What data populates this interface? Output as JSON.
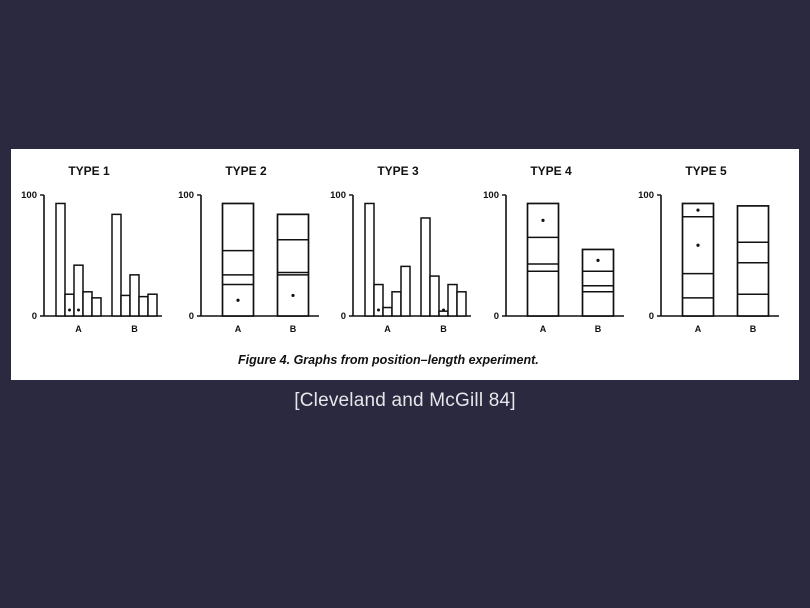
{
  "figure": {
    "caption": "Figure 4. Graphs from position–length experiment."
  },
  "citation": "[Cleveland and McGill 84]",
  "chart_data": [
    {
      "type": "bar",
      "title": "TYPE 1",
      "ylim": [
        0,
        100
      ],
      "yticks": [
        "0",
        "100"
      ],
      "categories": [
        "A",
        "B"
      ],
      "groups": [
        {
          "category": "A",
          "bars": [
            93,
            18,
            42,
            20,
            15
          ],
          "marked_bars": [
            1,
            2
          ]
        },
        {
          "category": "B",
          "bars": [
            84,
            17,
            34,
            16,
            18
          ],
          "marked_bars": []
        }
      ]
    },
    {
      "type": "bar",
      "title": "TYPE 2",
      "ylim": [
        0,
        100
      ],
      "yticks": [
        "0",
        "100"
      ],
      "categories": [
        "A",
        "B"
      ],
      "stacks": [
        {
          "category": "A",
          "boundaries": [
            26,
            34,
            54,
            93
          ],
          "marked_segment": 0
        },
        {
          "category": "B",
          "boundaries": [
            34,
            36,
            63,
            84
          ],
          "marked_segment": 0
        }
      ]
    },
    {
      "type": "bar",
      "title": "TYPE 3",
      "ylim": [
        0,
        100
      ],
      "yticks": [
        "0",
        "100"
      ],
      "categories": [
        "A",
        "B"
      ],
      "groups": [
        {
          "category": "A",
          "bars": [
            93,
            26,
            7,
            20,
            41
          ],
          "marked_bars": [
            1
          ]
        },
        {
          "category": "B",
          "bars": [
            81,
            33,
            4,
            26,
            20
          ],
          "marked_bars": [
            2
          ]
        }
      ]
    },
    {
      "type": "bar",
      "title": "TYPE 4",
      "ylim": [
        0,
        100
      ],
      "yticks": [
        "0",
        "100"
      ],
      "categories": [
        "A",
        "B"
      ],
      "stacks": [
        {
          "category": "A",
          "boundaries": [
            37,
            43,
            65,
            93
          ],
          "marked_segment": 3
        },
        {
          "category": "B",
          "boundaries": [
            20,
            25,
            37,
            55
          ],
          "marked_segment": 3
        }
      ]
    },
    {
      "type": "bar",
      "title": "TYPE 5",
      "ylim": [
        0,
        100
      ],
      "yticks": [
        "0",
        "100"
      ],
      "categories": [
        "A",
        "B"
      ],
      "stacks": [
        {
          "category": "A",
          "boundaries": [
            15,
            35,
            82,
            93
          ],
          "marked_segment": [
            2,
            3
          ]
        },
        {
          "category": "B",
          "boundaries": [
            18,
            44,
            61,
            91
          ],
          "marked_segment": []
        }
      ]
    }
  ]
}
